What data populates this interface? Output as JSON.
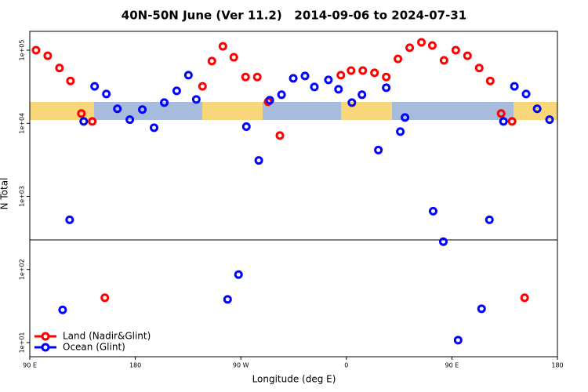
{
  "chart_data": {
    "type": "scatter",
    "title": "40N-50N June (Ver 11.2)   2014-09-06 to 2024-07-31",
    "x_label": "Longitude (deg E)",
    "y_label": "N Total",
    "xlim": [
      90,
      540
    ],
    "ylim": [
      6.4,
      181000
    ],
    "log_y": true,
    "xticks": [
      {
        "value": 90,
        "label": "90 E"
      },
      180,
      {
        "value": 270,
        "label": "90 W"
      },
      {
        "value": 360,
        "label": "0"
      },
      {
        "value": 450,
        "label": "90 E"
      },
      {
        "value": 540,
        "label": "180"
      }
    ],
    "yticks": [
      {
        "value": 10,
        "label": "1e+01"
      },
      {
        "value": 100,
        "label": "1e+02"
      },
      {
        "value": 1000,
        "label": "1e+03"
      },
      {
        "value": 10000,
        "label": "1e+04"
      },
      {
        "value": 100000,
        "label": "1e+05"
      }
    ],
    "legend": "bottom-left",
    "series": [
      {
        "name": "Land (Nadir&Glint)",
        "color": "#ff0000",
        "x": [
          95.3,
          105.3,
          115.3,
          124.7,
          134,
          143.3,
          154,
          237.3,
          245.3,
          254.7,
          264,
          274,
          284,
          293.3,
          303.3,
          355.3,
          364,
          374,
          384,
          394,
          404,
          414,
          424,
          433.3,
          443.3,
          453.3,
          463.3,
          473.3,
          482.7,
          492,
          501.3,
          512
        ],
        "values": [
          100000,
          84000,
          57000,
          38000,
          13600,
          10600,
          41,
          32000,
          71000,
          113000,
          80000,
          43000,
          43000,
          19700,
          6800,
          45500,
          52700,
          52700,
          49000,
          43000,
          76000,
          108000,
          128000,
          116000,
          72600,
          100000,
          84000,
          57000,
          38000,
          13600,
          10600,
          41
        ]
      },
      {
        "name": "Ocean (Glint)",
        "color": "#0000ff",
        "x": [
          118,
          124,
          136,
          145.3,
          155.3,
          164.7,
          175.3,
          186,
          196,
          204.7,
          215.3,
          225.3,
          232,
          258.7,
          268,
          274.7,
          285.3,
          294.7,
          304.7,
          314.7,
          324.7,
          332.7,
          344.7,
          353.3,
          364.7,
          373.3,
          387.3,
          394,
          406,
          410,
          434,
          442.7,
          455.3,
          475.3,
          482,
          494,
          503.3,
          513.3,
          522.7,
          533.3
        ],
        "values": [
          28,
          478,
          10600,
          32000,
          25200,
          15800,
          11200,
          15400,
          8700,
          19200,
          27800,
          45500,
          21200,
          39,
          85,
          9000,
          3100,
          20700,
          24600,
          41200,
          44400,
          31400,
          39300,
          29200,
          19200,
          24600,
          4300,
          30700,
          7700,
          12000,
          627,
          240,
          10.8,
          29,
          478,
          10600,
          32000,
          25200,
          15800,
          11200
        ]
      }
    ]
  }
}
